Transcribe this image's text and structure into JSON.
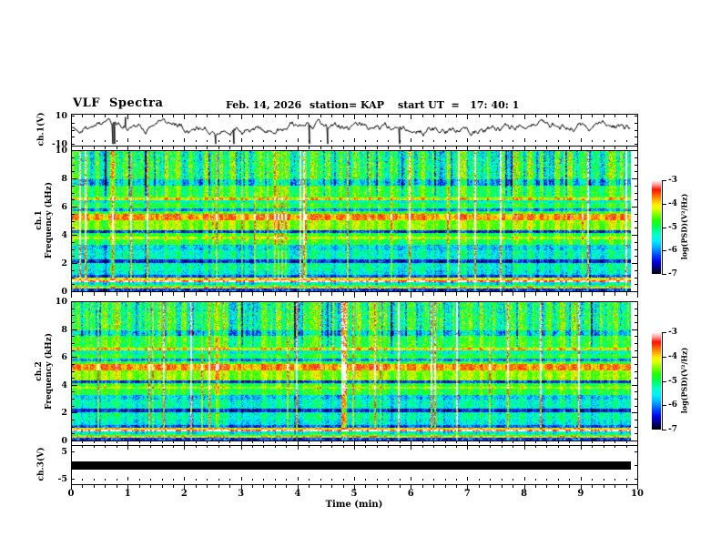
{
  "title": {
    "main": "VLF  Spectra",
    "date": "Feb. 14, 2026",
    "station": "station= KAP",
    "start_ut": "start UT  =   17: 40: 1"
  },
  "x_axis": {
    "label": "Time (min)",
    "min": 0,
    "max": 10,
    "major_tick_labels": [
      "0",
      "1",
      "2",
      "3",
      "4",
      "5",
      "6",
      "7",
      "8",
      "9",
      "10"
    ],
    "minor_step_min": 0.2
  },
  "panels": {
    "ch1_wave": {
      "ylabel": "ch.1(V)",
      "y_top_label": "10",
      "y_bottom_label": "-10",
      "y_ticks": [
        10,
        5,
        0,
        -5,
        -10
      ]
    },
    "ch1_spec": {
      "ylabel_ch": "ch.1",
      "ylabel_axis": "Frequency (kHz)",
      "y_major_ticks": [
        "0",
        "2",
        "4",
        "6",
        "8",
        "10"
      ],
      "y_minor_step_khz": 0.5
    },
    "ch2_spec": {
      "ylabel_ch": "ch.2",
      "ylabel_axis": "Frequency (kHz)",
      "y_major_ticks": [
        "0",
        "2",
        "4",
        "6",
        "8",
        "10"
      ],
      "y_minor_step_khz": 0.5
    },
    "ch3_wave": {
      "ylabel": "ch.3(V)",
      "y_top_label": "5",
      "y_bottom_label": "-5",
      "y_ticks": [
        5,
        0,
        -5
      ]
    }
  },
  "colorbars": [
    {
      "label": "log(PSD)(V²/Hz)",
      "tick_labels": [
        "-3",
        "-4",
        "-5",
        "-6",
        "-7"
      ],
      "max": -3,
      "min": -7
    },
    {
      "label": "log(PSD)(V²/Hz)",
      "tick_labels": [
        "-3",
        "-4",
        "-5",
        "-6",
        "-7"
      ],
      "max": -3,
      "min": -7
    }
  ],
  "chart_data": {
    "colormap": {
      "min": -7,
      "max": -3,
      "stops": [
        [
          0.0,
          "#000000"
        ],
        [
          0.06,
          "#000070"
        ],
        [
          0.13,
          "#0000e0"
        ],
        [
          0.2,
          "#0044ff"
        ],
        [
          0.28,
          "#00aaff"
        ],
        [
          0.35,
          "#00eeff"
        ],
        [
          0.42,
          "#00ffcc"
        ],
        [
          0.5,
          "#00ff55"
        ],
        [
          0.57,
          "#22ff00"
        ],
        [
          0.64,
          "#88ff00"
        ],
        [
          0.7,
          "#e8ff00"
        ],
        [
          0.74,
          "#ffee00"
        ],
        [
          0.79,
          "#ffaa00"
        ],
        [
          0.85,
          "#ff5500"
        ],
        [
          0.9,
          "#ff1100"
        ],
        [
          0.95,
          "#ff9999"
        ],
        [
          1.0,
          "#ffffff"
        ]
      ]
    },
    "panels": [
      {
        "id": "ch1_waveform",
        "type": "line",
        "xlabel": "Time (min)",
        "ylabel": "ch.1(V)",
        "xlim": [
          0,
          10
        ],
        "ylim": [
          -10,
          10
        ],
        "description": "broadband noisy waveform, mostly between -5 and +8 V, occasional full-scale negative spikes",
        "seed": 11,
        "mean": 1.8,
        "step_amp": 3.4,
        "spike_prob": 0.012,
        "up_spike_prob": 0.004
      },
      {
        "id": "ch1_spectrogram",
        "type": "heatmap",
        "xlabel": "Time (min)",
        "ylabel": "Frequency (kHz)",
        "xlim": [
          0,
          10
        ],
        "ylim": [
          0,
          10
        ],
        "zlabel": "log(PSD)(V²/Hz)",
        "zlim": [
          -7,
          -3
        ],
        "seed": 21,
        "streak_prob": 0.1,
        "bands": [
          [
            9.25,
            10.01,
            -5.05,
            0.65
          ],
          [
            8.0,
            9.25,
            -4.95,
            0.6
          ],
          [
            7.55,
            8.0,
            -5.6,
            0.5
          ],
          [
            6.7,
            7.55,
            -4.8,
            0.45
          ],
          [
            6.52,
            6.7,
            -4.05,
            0.3
          ],
          [
            6.28,
            6.52,
            -5.35,
            0.4
          ],
          [
            5.92,
            6.28,
            -4.85,
            0.4
          ],
          [
            5.74,
            5.92,
            -5.9,
            0.35
          ],
          [
            5.5,
            5.74,
            -4.7,
            0.35
          ],
          [
            5.04,
            5.5,
            -3.72,
            0.28
          ],
          [
            4.36,
            5.04,
            -4.42,
            0.32
          ],
          [
            4.14,
            4.36,
            -6.25,
            0.45
          ],
          [
            3.87,
            4.14,
            -4.75,
            0.35
          ],
          [
            3.72,
            3.87,
            -4.25,
            0.3
          ],
          [
            3.3,
            3.72,
            -4.85,
            0.4
          ],
          [
            2.92,
            3.3,
            -5.6,
            0.5
          ],
          [
            2.28,
            2.92,
            -5.35,
            0.45
          ],
          [
            2.0,
            2.28,
            -6.35,
            0.4
          ],
          [
            1.5,
            2.0,
            -5.3,
            0.45
          ],
          [
            1.12,
            1.5,
            -5.5,
            0.45
          ],
          [
            0.92,
            1.12,
            -6.15,
            0.4
          ],
          [
            0.76,
            0.92,
            -4.05,
            0.22
          ],
          [
            0.62,
            0.76,
            -3.15,
            0.18
          ],
          [
            0.44,
            0.62,
            -5.5,
            0.45
          ],
          [
            0.3,
            0.44,
            -4.9,
            0.4
          ],
          [
            0.16,
            0.3,
            -3.95,
            0.25
          ],
          [
            0.0,
            0.16,
            -6.3,
            0.5
          ]
        ]
      },
      {
        "id": "ch2_spectrogram",
        "type": "heatmap",
        "xlabel": "Time (min)",
        "ylabel": "Frequency (kHz)",
        "xlim": [
          0,
          10
        ],
        "ylim": [
          0,
          10
        ],
        "zlabel": "log(PSD)(V²/Hz)",
        "zlim": [
          -7,
          -3
        ],
        "seed": 31,
        "streak_prob": 0.1,
        "bands": [
          [
            9.25,
            10.01,
            -5.05,
            0.65
          ],
          [
            8.0,
            9.25,
            -4.95,
            0.6
          ],
          [
            7.55,
            8.0,
            -5.6,
            0.5
          ],
          [
            6.7,
            7.55,
            -4.8,
            0.45
          ],
          [
            6.52,
            6.7,
            -4.05,
            0.3
          ],
          [
            6.28,
            6.52,
            -5.35,
            0.4
          ],
          [
            5.92,
            6.28,
            -4.85,
            0.4
          ],
          [
            5.74,
            5.92,
            -5.9,
            0.35
          ],
          [
            5.5,
            5.74,
            -4.7,
            0.35
          ],
          [
            5.04,
            5.5,
            -3.72,
            0.28
          ],
          [
            4.36,
            5.04,
            -4.42,
            0.32
          ],
          [
            4.14,
            4.36,
            -6.25,
            0.45
          ],
          [
            3.87,
            4.14,
            -4.75,
            0.35
          ],
          [
            3.72,
            3.87,
            -4.25,
            0.3
          ],
          [
            3.3,
            3.72,
            -4.85,
            0.4
          ],
          [
            2.92,
            3.3,
            -5.65,
            0.5
          ],
          [
            2.28,
            2.92,
            -5.35,
            0.45
          ],
          [
            2.0,
            2.28,
            -6.4,
            0.4
          ],
          [
            1.5,
            2.0,
            -5.3,
            0.45
          ],
          [
            1.12,
            1.5,
            -5.5,
            0.45
          ],
          [
            0.92,
            1.12,
            -6.15,
            0.4
          ],
          [
            0.76,
            0.92,
            -4.05,
            0.22
          ],
          [
            0.62,
            0.76,
            -3.15,
            0.18
          ],
          [
            0.44,
            0.62,
            -5.5,
            0.45
          ],
          [
            0.3,
            0.44,
            -4.9,
            0.4
          ],
          [
            0.16,
            0.3,
            -3.95,
            0.25
          ],
          [
            0.0,
            0.16,
            -6.3,
            0.5
          ]
        ]
      },
      {
        "id": "ch3_waveform",
        "type": "line",
        "xlabel": "Time (min)",
        "ylabel": "ch.3(V)",
        "xlim": [
          0,
          10
        ],
        "ylim_tick_labels": [
          5,
          -5
        ],
        "description": "saturated/clipped signal drawn as a solid black bar spanning about -1 to +1 V for the full record",
        "bar_volts": [
          -1.1,
          1.1
        ]
      }
    ]
  }
}
